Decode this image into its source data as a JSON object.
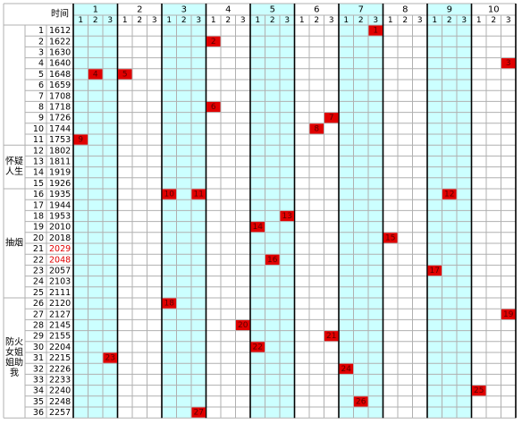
{
  "header": {
    "time_label": "时间"
  },
  "groups": [
    "1",
    "2",
    "3",
    "4",
    "5",
    "6",
    "7",
    "8",
    "9",
    "10"
  ],
  "subcols": [
    "1",
    "2",
    "3"
  ],
  "rows": [
    {
      "n": "1",
      "t": "1612"
    },
    {
      "n": "2",
      "t": "1622"
    },
    {
      "n": "3",
      "t": "1630"
    },
    {
      "n": "4",
      "t": "1640"
    },
    {
      "n": "5",
      "t": "1648"
    },
    {
      "n": "6",
      "t": "1659"
    },
    {
      "n": "7",
      "t": "1708"
    },
    {
      "n": "8",
      "t": "1718"
    },
    {
      "n": "9",
      "t": "1726"
    },
    {
      "n": "10",
      "t": "1744"
    },
    {
      "n": "11",
      "t": "1753"
    },
    {
      "n": "12",
      "t": "1802"
    },
    {
      "n": "13",
      "t": "1811"
    },
    {
      "n": "14",
      "t": "1919"
    },
    {
      "n": "15",
      "t": "1926"
    },
    {
      "n": "16",
      "t": "1935"
    },
    {
      "n": "17",
      "t": "1944"
    },
    {
      "n": "18",
      "t": "1953"
    },
    {
      "n": "19",
      "t": "2010"
    },
    {
      "n": "20",
      "t": "2018"
    },
    {
      "n": "21",
      "t": "2029",
      "red": true
    },
    {
      "n": "22",
      "t": "2048",
      "red": true
    },
    {
      "n": "23",
      "t": "2057"
    },
    {
      "n": "24",
      "t": "2103"
    },
    {
      "n": "25",
      "t": "2111"
    },
    {
      "n": "26",
      "t": "2120"
    },
    {
      "n": "27",
      "t": "2127"
    },
    {
      "n": "28",
      "t": "2145"
    },
    {
      "n": "29",
      "t": "2155"
    },
    {
      "n": "30",
      "t": "2204"
    },
    {
      "n": "31",
      "t": "2215"
    },
    {
      "n": "32",
      "t": "2226"
    },
    {
      "n": "33",
      "t": "2233"
    },
    {
      "n": "34",
      "t": "2240"
    },
    {
      "n": "35",
      "t": "2248"
    },
    {
      "n": "36",
      "t": "2257"
    }
  ],
  "side_labels": [
    {
      "text": [
        "怀疑",
        "人生"
      ],
      "from_row": 12,
      "to_row": 15
    },
    {
      "text": [
        "抽烟"
      ],
      "from_row": 16,
      "to_row": 25
    },
    {
      "text": [
        "防火",
        "女姐",
        "姐助",
        "我"
      ],
      "from_row": 26,
      "to_row": 36
    }
  ],
  "marks": [
    {
      "row": 1,
      "group": 7,
      "sub": 3,
      "label": "1"
    },
    {
      "row": 2,
      "group": 4,
      "sub": 1,
      "label": "2"
    },
    {
      "row": 4,
      "group": 10,
      "sub": 3,
      "label": "3"
    },
    {
      "row": 5,
      "group": 1,
      "sub": 2,
      "label": "4"
    },
    {
      "row": 5,
      "group": 2,
      "sub": 1,
      "label": "5"
    },
    {
      "row": 8,
      "group": 4,
      "sub": 1,
      "label": "6"
    },
    {
      "row": 9,
      "group": 6,
      "sub": 3,
      "label": "7"
    },
    {
      "row": 10,
      "group": 6,
      "sub": 2,
      "label": "8"
    },
    {
      "row": 11,
      "group": 1,
      "sub": 1,
      "label": "9"
    },
    {
      "row": 16,
      "group": 3,
      "sub": 1,
      "label": "10"
    },
    {
      "row": 16,
      "group": 3,
      "sub": 3,
      "label": "11"
    },
    {
      "row": 16,
      "group": 9,
      "sub": 2,
      "label": "12"
    },
    {
      "row": 18,
      "group": 5,
      "sub": 3,
      "label": "13"
    },
    {
      "row": 19,
      "group": 5,
      "sub": 1,
      "label": "14"
    },
    {
      "row": 20,
      "group": 8,
      "sub": 1,
      "label": "15"
    },
    {
      "row": 22,
      "group": 5,
      "sub": 2,
      "label": "16"
    },
    {
      "row": 23,
      "group": 9,
      "sub": 1,
      "label": "17"
    },
    {
      "row": 26,
      "group": 3,
      "sub": 1,
      "label": "18"
    },
    {
      "row": 27,
      "group": 10,
      "sub": 3,
      "label": "19"
    },
    {
      "row": 28,
      "group": 4,
      "sub": 3,
      "label": "20"
    },
    {
      "row": 29,
      "group": 6,
      "sub": 3,
      "label": "21"
    },
    {
      "row": 30,
      "group": 5,
      "sub": 1,
      "label": "22"
    },
    {
      "row": 31,
      "group": 1,
      "sub": 3,
      "label": "23"
    },
    {
      "row": 32,
      "group": 7,
      "sub": 1,
      "label": "24"
    },
    {
      "row": 34,
      "group": 10,
      "sub": 1,
      "label": "25"
    },
    {
      "row": 35,
      "group": 7,
      "sub": 2,
      "label": "26"
    },
    {
      "row": 36,
      "group": 3,
      "sub": 3,
      "label": "27"
    }
  ],
  "colors": {
    "highlight_bg": "#ccffff",
    "mark_bg": "#e00000",
    "mark_text": "#5a0000",
    "red_text": "#e00000",
    "grid_line": "#b0b0b0",
    "strong_line": "#000000"
  },
  "highlighted_groups": [
    1,
    3,
    5,
    7,
    9
  ]
}
